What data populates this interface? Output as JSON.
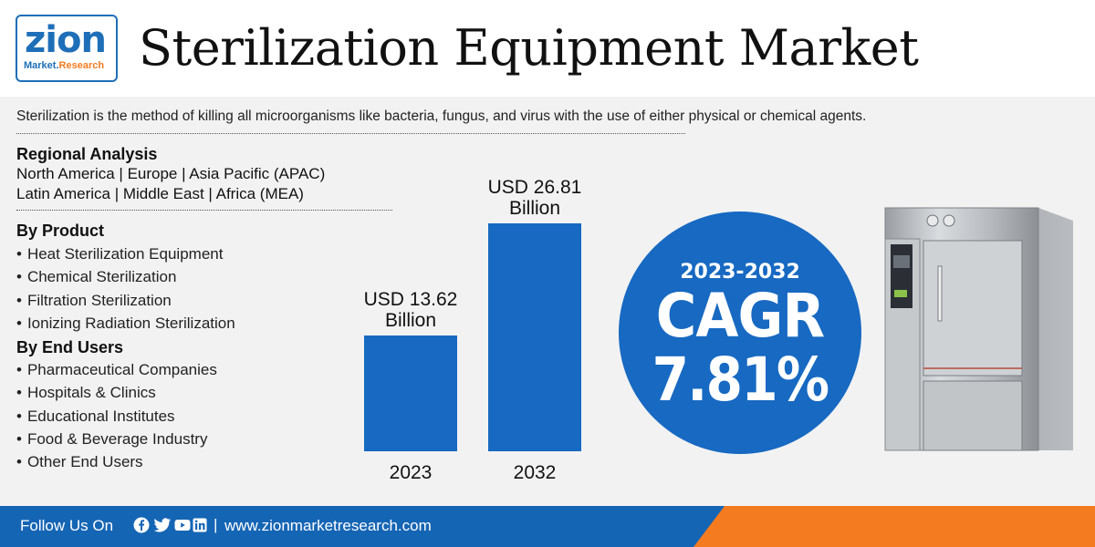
{
  "brand": {
    "logo_main": "zion",
    "logo_sub_a": "Market.",
    "logo_sub_b": "Research",
    "color_primary": "#1769c2",
    "color_accent": "#f47b20"
  },
  "title": "Sterilization Equipment Market",
  "definition": "Sterilization is the method of killing all microorganisms like bacteria, fungus, and virus with the use of either physical or chemical agents.",
  "regional": {
    "heading": "Regional Analysis",
    "line1": "North America | Europe | Asia Pacific (APAC)",
    "line2": "Latin America | Middle East | Africa (MEA)"
  },
  "by_product": {
    "heading": "By Product",
    "items": [
      "Heat Sterilization Equipment",
      "Chemical Sterilization",
      "Filtration Sterilization",
      "Ionizing Radiation Sterilization"
    ]
  },
  "by_end_users": {
    "heading": "By End Users",
    "items": [
      "Pharmaceutical Companies",
      "Hospitals & Clinics",
      "Educational Institutes",
      "Food & Beverage Industry",
      "Other End Users"
    ]
  },
  "chart_data": {
    "type": "bar",
    "categories": [
      "2023",
      "2032"
    ],
    "values": [
      13.62,
      26.81
    ],
    "data_labels": [
      [
        "USD 13.62",
        "Billion"
      ],
      [
        "USD 26.81",
        "Billion"
      ]
    ],
    "title": "",
    "xlabel": "",
    "ylabel": "",
    "ylim": [
      0,
      26.81
    ],
    "grid": false,
    "bar_color": "#1769c2"
  },
  "cagr": {
    "period": "2023-2032",
    "label": "CAGR",
    "value": "7.81%"
  },
  "image_icon": "autoclave-sterilizer-icon",
  "footer": {
    "follow": "Follow Us On",
    "separator": "|",
    "url": "www.zionmarketresearch.com",
    "social_icons": [
      "facebook-icon",
      "twitter-icon",
      "youtube-icon",
      "linkedin-icon",
      "instagram-icon"
    ]
  }
}
